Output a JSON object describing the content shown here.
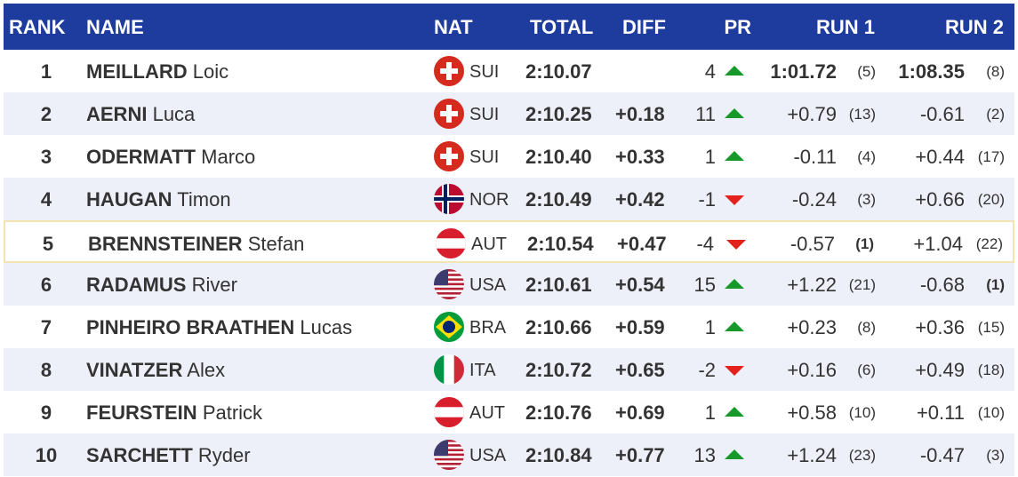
{
  "header": {
    "rank": "RANK",
    "name": "NAME",
    "nat": "NAT",
    "total": "TOTAL",
    "diff": "DIFF",
    "pr": "PR",
    "run1": "RUN 1",
    "run2": "RUN 2"
  },
  "rows": [
    {
      "rank": "1",
      "last": "MEILLARD",
      "first": "Loic",
      "nat": "SUI",
      "total": "2:10.07",
      "pr": 4,
      "run1": "1:01.72",
      "run1_rank": "(5)",
      "run2": "1:08.35",
      "run2_rank": "(8)"
    },
    {
      "rank": "2",
      "last": "AERNI",
      "first": "Luca",
      "nat": "SUI",
      "total": "2:10.25",
      "diff": "+0.18",
      "pr": 11,
      "run1": "+0.79",
      "run1_rank": "(13)",
      "run2": "-0.61",
      "run2_rank": "(2)"
    },
    {
      "rank": "3",
      "last": "ODERMATT",
      "first": "Marco",
      "nat": "SUI",
      "total": "2:10.40",
      "diff": "+0.33",
      "pr": 1,
      "run1": "-0.11",
      "run1_rank": "(4)",
      "run2": "+0.44",
      "run2_rank": "(17)"
    },
    {
      "rank": "4",
      "last": "HAUGAN",
      "first": "Timon",
      "nat": "NOR",
      "total": "2:10.49",
      "diff": "+0.42",
      "pr": -1,
      "run1": "-0.24",
      "run1_rank": "(3)",
      "run2": "+0.66",
      "run2_rank": "(20)"
    },
    {
      "rank": "5",
      "last": "BRENNSTEINER",
      "first": "Stefan",
      "nat": "AUT",
      "total": "2:10.54",
      "diff": "+0.47",
      "pr": -4,
      "run1": "-0.57",
      "run1_rank": "(1)",
      "run2": "+1.04",
      "run2_rank": "(22)"
    },
    {
      "rank": "6",
      "last": "RADAMUS",
      "first": "River",
      "nat": "USA",
      "total": "2:10.61",
      "diff": "+0.54",
      "pr": 15,
      "run1": "+1.22",
      "run1_rank": "(21)",
      "run2": "-0.68",
      "run2_rank": "(1)"
    },
    {
      "rank": "7",
      "last": "PINHEIRO BRAATHEN",
      "first": "Lucas",
      "nat": "BRA",
      "total": "2:10.66",
      "diff": "+0.59",
      "pr": 1,
      "run1": "+0.23",
      "run1_rank": "(8)",
      "run2": "+0.36",
      "run2_rank": "(15)"
    },
    {
      "rank": "8",
      "last": "VINATZER",
      "first": "Alex",
      "nat": "ITA",
      "total": "2:10.72",
      "diff": "+0.65",
      "pr": -2,
      "run1": "+0.16",
      "run1_rank": "(6)",
      "run2": "+0.49",
      "run2_rank": "(18)"
    },
    {
      "rank": "9",
      "last": "FEURSTEIN",
      "first": "Patrick",
      "nat": "AUT",
      "total": "2:10.76",
      "diff": "+0.69",
      "pr": 1,
      "run1": "+0.58",
      "run1_rank": "(10)",
      "run2": "+0.11",
      "run2_rank": "(10)"
    },
    {
      "rank": "10",
      "last": "SARCHETT",
      "first": "Ryder",
      "nat": "USA",
      "total": "2:10.84",
      "diff": "+0.77",
      "pr": 13,
      "run1": "+1.24",
      "run1_rank": "(23)",
      "run2": "-0.47",
      "run2_rank": "(3)"
    }
  ]
}
